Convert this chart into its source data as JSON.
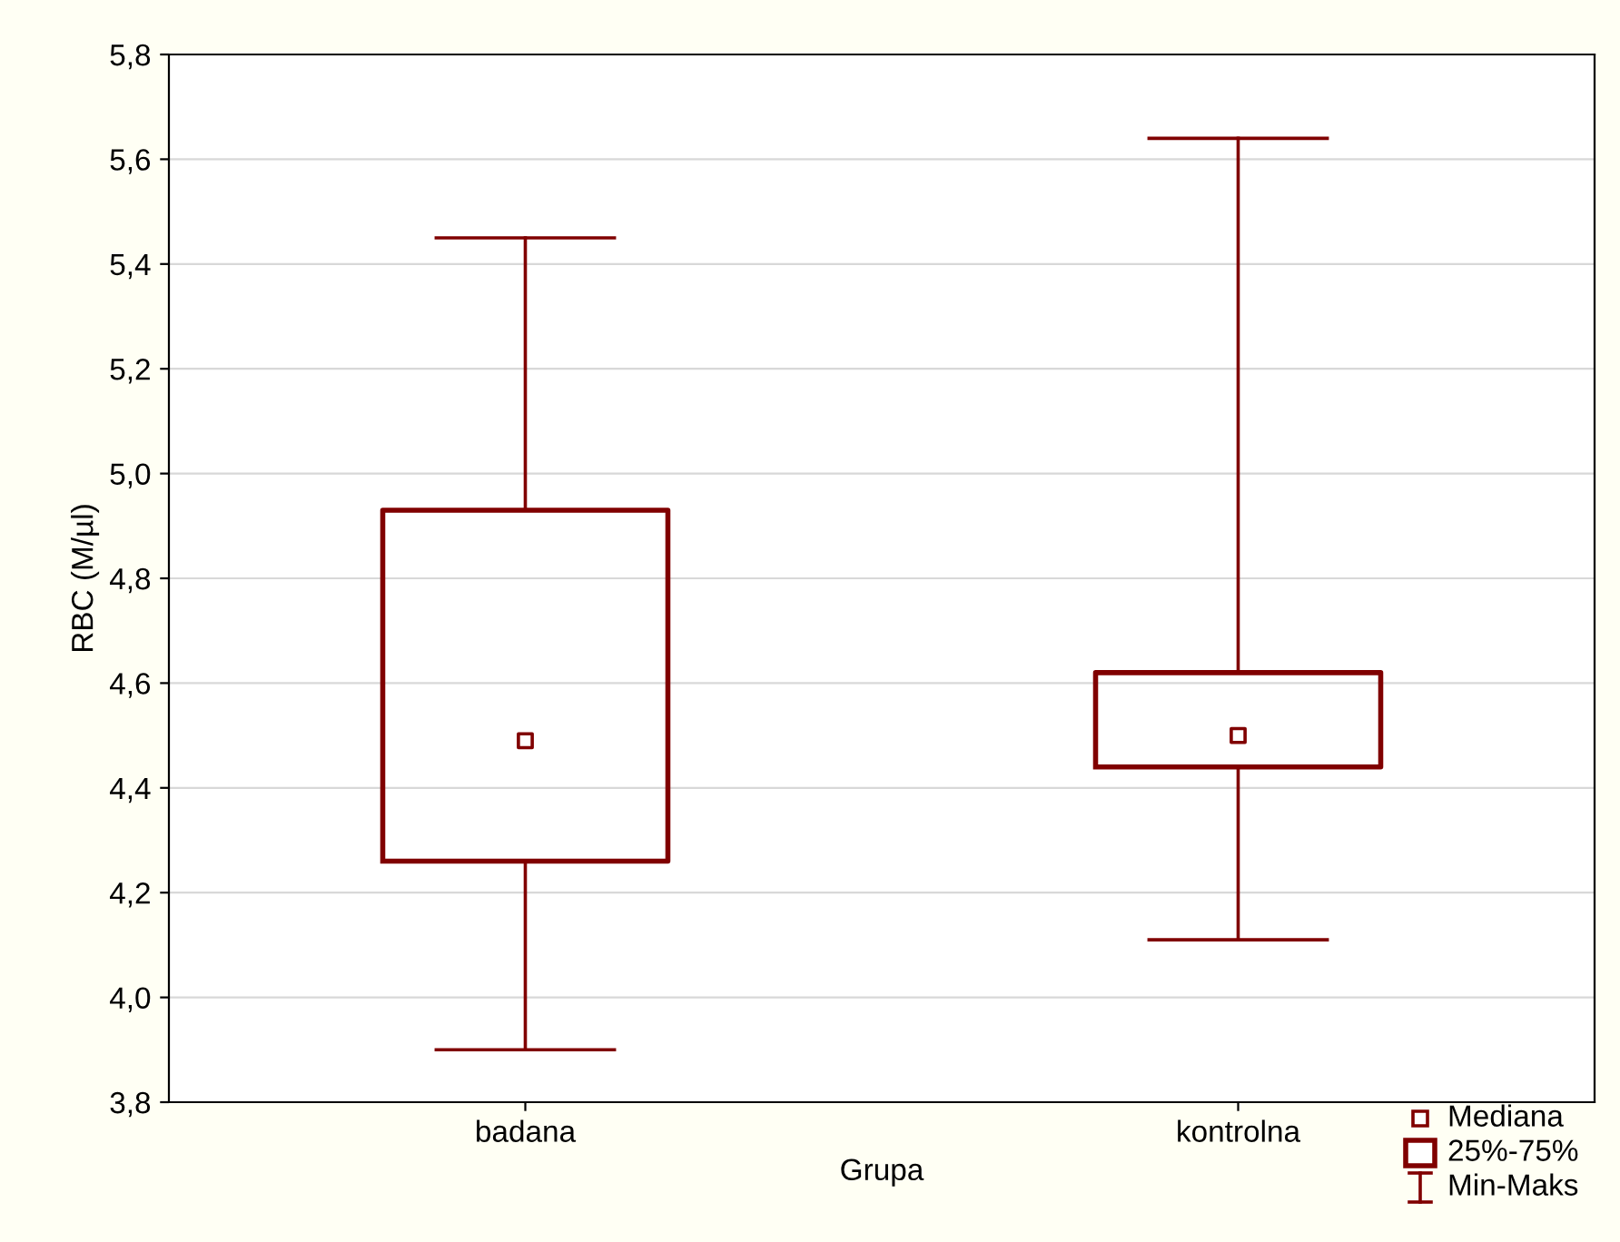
{
  "chart_data": {
    "type": "box",
    "xlabel": "Grupa",
    "ylabel": "RBC (M/µl)",
    "categories": [
      "badana",
      "kontrolna"
    ],
    "series": [
      {
        "color": "#800000",
        "boxes": [
          {
            "low": 3.9,
            "q1": 4.26,
            "median": 4.49,
            "q3": 4.93,
            "high": 5.45
          },
          {
            "low": 4.11,
            "q1": 4.44,
            "median": 4.5,
            "q3": 4.62,
            "high": 5.64
          }
        ]
      }
    ],
    "ylim": [
      3.8,
      5.8
    ],
    "yticks": [
      {
        "value": 3.8,
        "label": "3,8"
      },
      {
        "value": 4.0,
        "label": "4,0"
      },
      {
        "value": 4.2,
        "label": "4,2"
      },
      {
        "value": 4.4,
        "label": "4,4"
      },
      {
        "value": 4.6,
        "label": "4,6"
      },
      {
        "value": 4.8,
        "label": "4,8"
      },
      {
        "value": 5.0,
        "label": "5,0"
      },
      {
        "value": 5.2,
        "label": "5,2"
      },
      {
        "value": 5.4,
        "label": "5,4"
      },
      {
        "value": 5.6,
        "label": "5,6"
      },
      {
        "value": 5.8,
        "label": "5,8"
      }
    ],
    "grid": "y",
    "marker": "square",
    "annotations": [
      "Mediana",
      "25%-75%",
      "Min-Maks"
    ]
  }
}
